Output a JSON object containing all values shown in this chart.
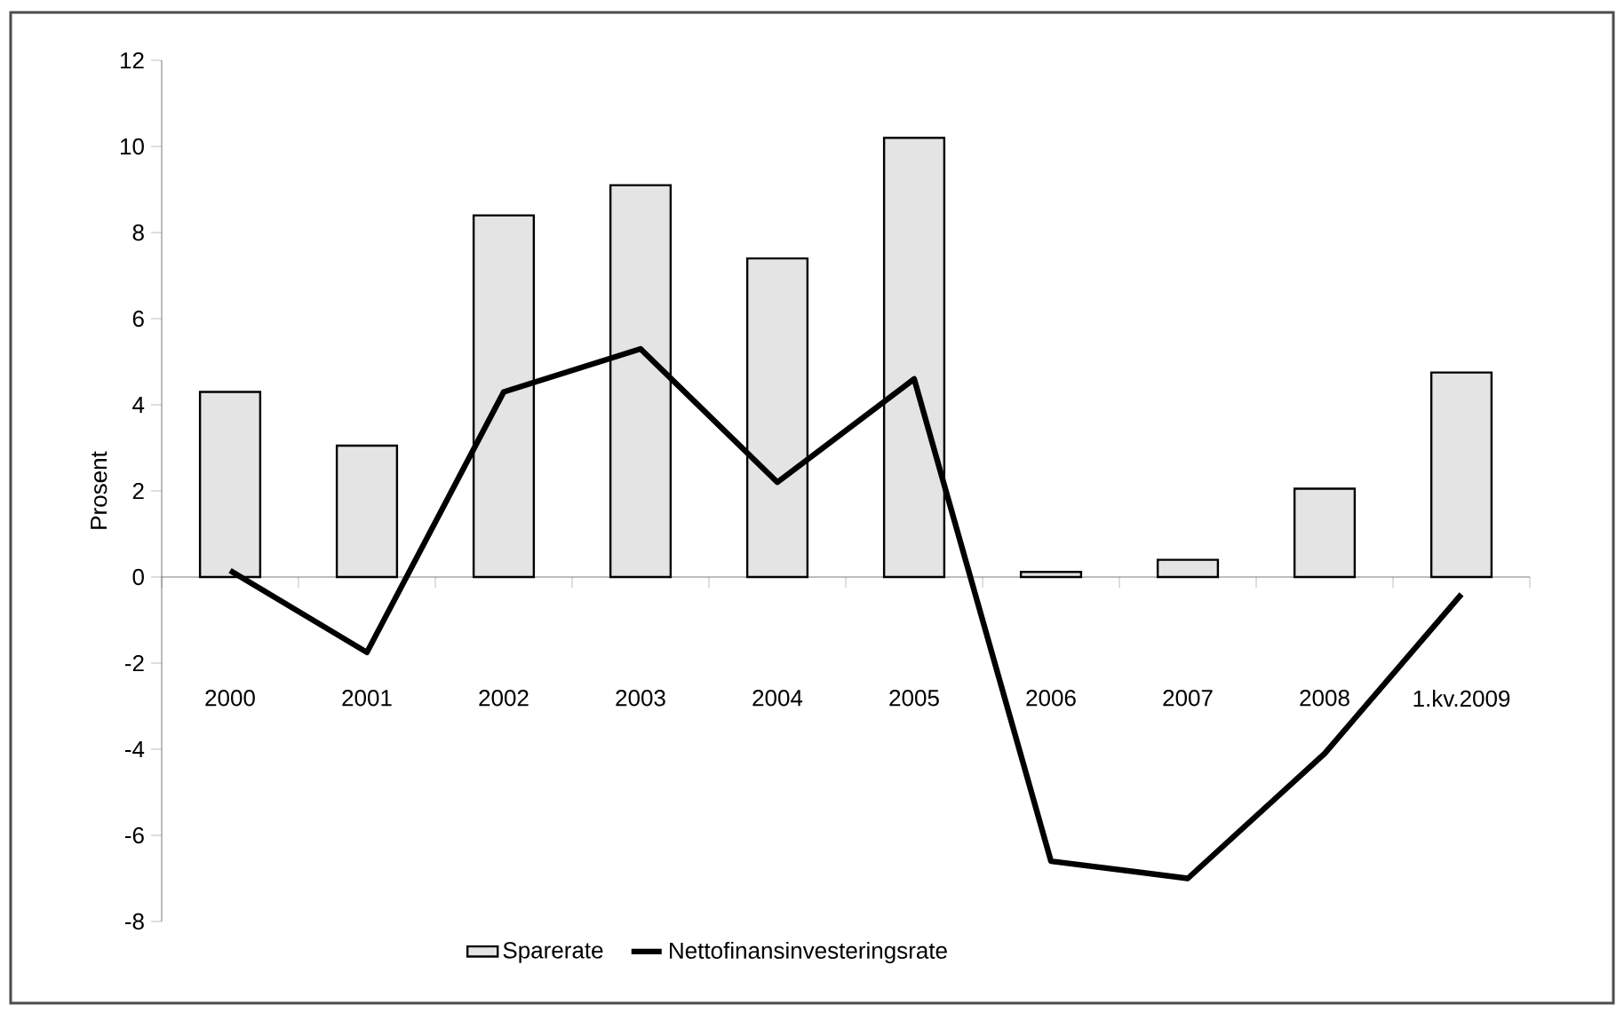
{
  "chart_data": {
    "type": "bar",
    "ylabel": "Prosent",
    "categories": [
      "2000",
      "2001",
      "2002",
      "2003",
      "2004",
      "2005",
      "2006",
      "2007",
      "2008",
      "1.kv.2009"
    ],
    "series": [
      {
        "name": "Sparerate",
        "color": "#e4e4e4",
        "values": [
          4.3,
          3.05,
          8.4,
          9.1,
          7.4,
          10.2,
          0.12,
          0.4,
          2.05,
          4.75
        ]
      },
      {
        "name": "Nettofinansinvesteringsrate",
        "type": "line",
        "color": "#000000",
        "values": [
          0.15,
          -1.75,
          4.3,
          5.3,
          2.2,
          4.6,
          -6.6,
          -7.0,
          -4.1,
          -0.4
        ]
      }
    ],
    "ylim": [
      -8,
      12
    ],
    "yticks": [
      -8,
      -6,
      -4,
      -2,
      0,
      2,
      4,
      6,
      8,
      10,
      12
    ],
    "legend": "bottom",
    "marker": "none",
    "line_style": "solid"
  }
}
